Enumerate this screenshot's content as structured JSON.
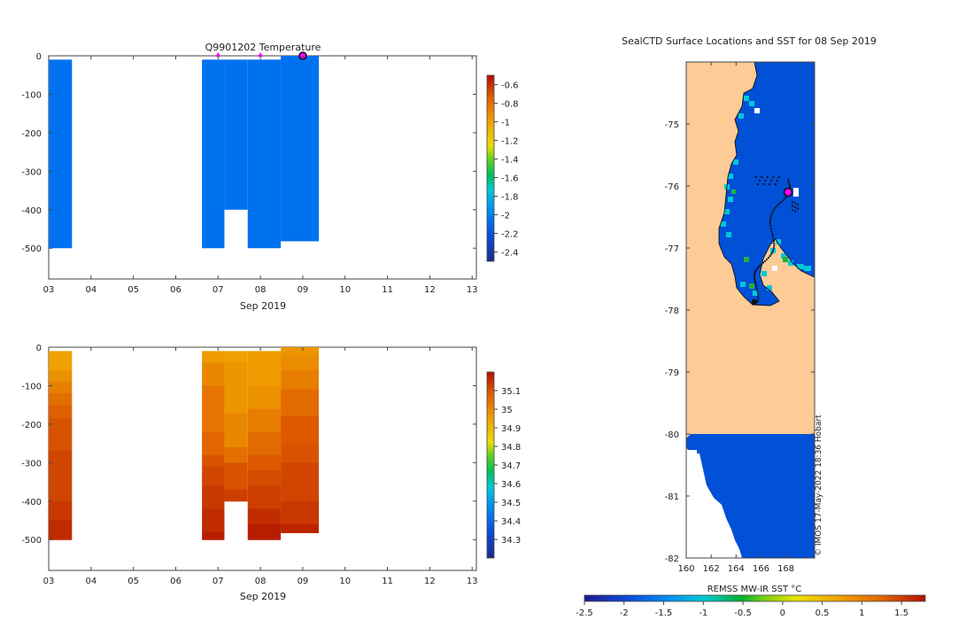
{
  "colors": {
    "ice": "#0072f0",
    "deep": "#0050d8",
    "land": "#fccb96",
    "marker": "#ff00ff"
  },
  "temp_colorbar": {
    "min": -2.5,
    "max": -0.5,
    "ticks": [
      "-0.6",
      "-0.8",
      "-1",
      "-1.2",
      "-1.4",
      "-1.6",
      "-1.8",
      "-2",
      "-2.2",
      "-2.4"
    ],
    "tick_values": [
      -0.6,
      -0.8,
      -1.0,
      -1.2,
      -1.4,
      -1.6,
      -1.8,
      -2.0,
      -2.2,
      -2.4
    ]
  },
  "sal_colorbar": {
    "min": 34.2,
    "max": 35.2,
    "ticks": [
      "35.1",
      "35",
      "34.9",
      "34.8",
      "34.7",
      "34.6",
      "34.5",
      "34.4",
      "34.3"
    ],
    "tick_values": [
      35.1,
      35.0,
      34.9,
      34.8,
      34.7,
      34.6,
      34.5,
      34.4,
      34.3
    ]
  },
  "sst_colorbar": {
    "label": "REMSS MW-IR SST °C",
    "min": -2.5,
    "max": 1.8,
    "ticks": [
      "-2.5",
      "-2",
      "-1.5",
      "-1",
      "-0.5",
      "0",
      "0.5",
      "1",
      "1.5"
    ],
    "tick_values": [
      -2.5,
      -2.0,
      -1.5,
      -1.0,
      -0.5,
      0.0,
      0.5,
      1.0,
      1.5
    ]
  },
  "chart_data": [
    {
      "type": "heatmap",
      "title": "Q9901202  Temperature",
      "xlabel": "Sep 2019",
      "ylabel": "",
      "x_ticks": [
        "03",
        "04",
        "05",
        "06",
        "07",
        "08",
        "09",
        "10",
        "11",
        "12",
        "13"
      ],
      "x_tick_values": [
        3,
        4,
        5,
        6,
        7,
        8,
        9,
        10,
        11,
        12,
        13
      ],
      "y_ticks": [
        "0",
        "-100",
        "-200",
        "-300",
        "-400",
        "-500"
      ],
      "y_tick_values": [
        0,
        -100,
        -200,
        -300,
        -400,
        -500
      ],
      "xlim": [
        3,
        13.1
      ],
      "ylim": [
        -580,
        0
      ],
      "profiles": [
        {
          "x0": 3.0,
          "x1": 3.55,
          "top": -10,
          "bottom": -500,
          "value": -2.0
        },
        {
          "x0": 6.62,
          "x1": 7.15,
          "top": -10,
          "bottom": -500,
          "value": -2.0
        },
        {
          "x0": 7.15,
          "x1": 7.7,
          "top": -10,
          "bottom": -400,
          "value": -2.0
        },
        {
          "x0": 7.7,
          "x1": 8.48,
          "top": -10,
          "bottom": -500,
          "value": -2.0
        },
        {
          "x0": 8.48,
          "x1": 9.38,
          "top": 0,
          "bottom": -482,
          "value": -2.0
        }
      ],
      "surface_markers": [
        7.0,
        8.0
      ],
      "current_x": 9.0
    },
    {
      "type": "heatmap",
      "title": "",
      "xlabel": "Sep 2019",
      "ylabel": "",
      "x_ticks": [
        "03",
        "04",
        "05",
        "06",
        "07",
        "08",
        "09",
        "10",
        "11",
        "12",
        "13"
      ],
      "x_tick_values": [
        3,
        4,
        5,
        6,
        7,
        8,
        9,
        10,
        11,
        12,
        13
      ],
      "y_ticks": [
        "0",
        "-100",
        "-200",
        "-300",
        "-400",
        "-500"
      ],
      "y_tick_values": [
        0,
        -100,
        -200,
        -300,
        -400,
        -500
      ],
      "xlim": [
        3,
        13.1
      ],
      "ylim": [
        -580,
        0
      ],
      "profiles": [
        {
          "x0": 3.0,
          "x1": 3.55,
          "depths": [
            -10,
            -60,
            -90,
            -120,
            -150,
            -185,
            -270,
            -400,
            -450,
            -500
          ],
          "values": [
            34.95,
            34.98,
            35.02,
            35.05,
            35.08,
            35.1,
            35.12,
            35.14,
            35.16
          ]
        },
        {
          "x0": 6.62,
          "x1": 7.15,
          "depths": [
            -10,
            -40,
            -100,
            -220,
            -280,
            -310,
            -360,
            -420,
            -480,
            -500
          ],
          "values": [
            34.96,
            35.0,
            35.04,
            35.07,
            35.1,
            35.12,
            35.14,
            35.16,
            35.18
          ]
        },
        {
          "x0": 7.15,
          "x1": 7.7,
          "depths": [
            -10,
            -40,
            -170,
            -260,
            -300,
            -370,
            -400
          ],
          "values": [
            34.95,
            34.97,
            35.0,
            35.05,
            35.1,
            35.13
          ]
        },
        {
          "x0": 7.7,
          "x1": 8.48,
          "depths": [
            -10,
            -100,
            -160,
            -220,
            -280,
            -320,
            -360,
            -420,
            -460,
            -500
          ],
          "values": [
            34.96,
            34.98,
            35.02,
            35.06,
            35.09,
            35.11,
            35.13,
            35.16,
            35.18
          ]
        },
        {
          "x0": 8.48,
          "x1": 9.38,
          "depths": [
            0,
            -20,
            -60,
            -110,
            -180,
            -250,
            -300,
            -400,
            -460,
            -482
          ],
          "values": [
            34.97,
            34.99,
            35.02,
            35.06,
            35.09,
            35.1,
            35.12,
            35.14,
            35.17
          ]
        }
      ]
    },
    {
      "type": "heatmap",
      "title": "SealCTD Surface Locations and SST for 08 Sep 2019",
      "xlabel": "",
      "ylabel": "",
      "x_ticks": [
        "160",
        "162",
        "164",
        "166",
        "168"
      ],
      "x_tick_values": [
        160,
        162,
        164,
        166,
        168
      ],
      "y_ticks": [
        "-75",
        "-76",
        "-77",
        "-78",
        "-79",
        "-80",
        "-81",
        "-82"
      ],
      "y_tick_values": [
        -75,
        -76,
        -77,
        -78,
        -79,
        -80,
        -81,
        -82
      ],
      "xlim": [
        160,
        170.3
      ],
      "ylim": [
        -82,
        -74.0
      ],
      "current_position": [
        168.1,
        -76.1
      ],
      "credit": "© IMOS 17-May-2022 18:36 Hobart"
    }
  ]
}
